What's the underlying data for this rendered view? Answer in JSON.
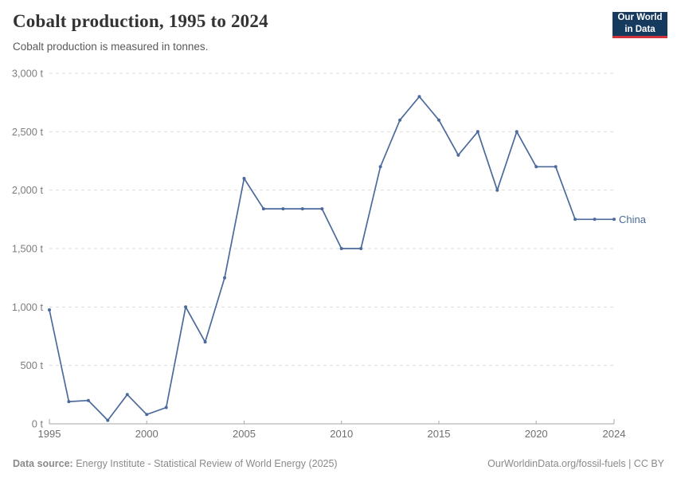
{
  "header": {
    "title": "Cobalt production, 1995 to 2024",
    "subtitle": "Cobalt production is measured in tonnes.",
    "logo": {
      "line1": "Our World",
      "line2": "in Data",
      "bg_color": "#16395e",
      "accent_color": "#d1353b"
    }
  },
  "chart_data": {
    "type": "line",
    "title": "Cobalt production, 1995 to 2024",
    "unit": "tonnes",
    "xlim": [
      1995,
      2024
    ],
    "ylim": [
      0,
      3000
    ],
    "grid": "horizontal dashed",
    "legend_position": "end-of-line label",
    "x_ticks": [
      1995,
      2000,
      2005,
      2010,
      2015,
      2020,
      2024
    ],
    "y_ticks": [
      0,
      500,
      1000,
      1500,
      2000,
      2500,
      3000
    ],
    "y_tick_labels": [
      "0 t",
      "500 t",
      "1,000 t",
      "1,500 t",
      "2,000 t",
      "2,500 t",
      "3,000 t"
    ],
    "series": [
      {
        "name": "China",
        "color": "#4c6a9c",
        "x": [
          1995,
          1996,
          1997,
          1998,
          1999,
          2000,
          2001,
          2002,
          2003,
          2004,
          2005,
          2006,
          2007,
          2008,
          2009,
          2010,
          2011,
          2012,
          2013,
          2014,
          2015,
          2016,
          2017,
          2018,
          2019,
          2020,
          2021,
          2022,
          2023,
          2024
        ],
        "values": [
          975,
          190,
          200,
          30,
          250,
          80,
          140,
          1000,
          700,
          1250,
          2100,
          1840,
          1840,
          1840,
          1840,
          1500,
          1500,
          2200,
          2600,
          2800,
          2600,
          2300,
          2500,
          2000,
          2500,
          2200,
          2200,
          1750,
          1750,
          1750
        ]
      }
    ]
  },
  "footer": {
    "source_label": "Data source:",
    "source_text": " Energy Institute - Statistical Review of World Energy (2025)",
    "credit_link": "OurWorldinData.org/fossil-fuels",
    "credit_rest": " | CC BY"
  }
}
